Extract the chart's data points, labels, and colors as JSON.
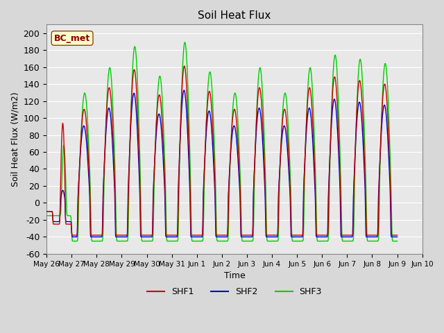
{
  "title": "Soil Heat Flux",
  "ylabel": "Soil Heat Flux (W/m2)",
  "xlabel": "Time",
  "ylim": [
    -60,
    210
  ],
  "xlim_start": 0,
  "xlim_end": 336,
  "background_color": "#e8e8e8",
  "plot_bg_color": "#e8e8e8",
  "grid_color": "white",
  "colors": {
    "SHF1": "#cc0000",
    "SHF2": "#0000cc",
    "SHF3": "#00cc00"
  },
  "legend_label": "BC_met",
  "tick_labels": [
    "May 26",
    "May 27",
    "May 28",
    "May 29",
    "May 30",
    "May 31",
    "Jun 1",
    "Jun 2",
    "Jun 3",
    "Jun 4",
    "Jun 5",
    "Jun 6",
    "Jun 7",
    "Jun 8",
    "Jun 9",
    "Jun 10"
  ],
  "yticks": [
    -60,
    -40,
    -20,
    0,
    20,
    40,
    60,
    80,
    100,
    120,
    140,
    160,
    180,
    200
  ]
}
